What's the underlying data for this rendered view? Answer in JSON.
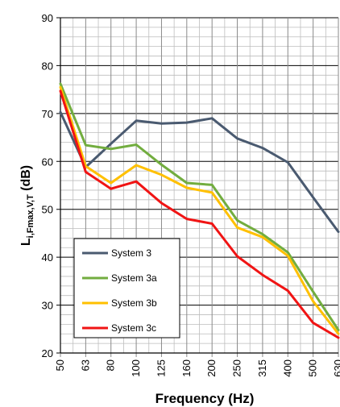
{
  "chart_data": {
    "type": "line",
    "xlabel": "Frequency (Hz)",
    "ylabel_main": "L",
    "ylabel_sub": "i,Fmax,V,T",
    "ylabel_unit": " (dB)",
    "categories": [
      "50",
      "63",
      "80",
      "100",
      "125",
      "160",
      "200",
      "250",
      "315",
      "400",
      "500",
      "630"
    ],
    "ylim": [
      20,
      90
    ],
    "yticks": [
      20,
      30,
      40,
      50,
      60,
      70,
      80,
      90
    ],
    "grid": true,
    "legend_position": "bottom-left",
    "series": [
      {
        "name": "System 3",
        "color": "#4a5a70",
        "values": [
          70.3,
          58.8,
          63.7,
          68.5,
          67.9,
          68.1,
          69.0,
          64.8,
          62.8,
          59.8,
          52.5,
          45.3
        ]
      },
      {
        "name": "System 3a",
        "color": "#72ad3f",
        "values": [
          76.2,
          63.4,
          62.6,
          63.5,
          59.3,
          55.5,
          55.1,
          47.7,
          44.8,
          41.0,
          32.8,
          24.8
        ]
      },
      {
        "name": "System 3b",
        "color": "#ffc000",
        "values": [
          75.5,
          59.0,
          55.5,
          59.2,
          57.2,
          54.5,
          53.5,
          46.2,
          44.2,
          40.3,
          30.8,
          24.0
        ]
      },
      {
        "name": "System 3c",
        "color": "#f01414",
        "values": [
          74.7,
          57.8,
          54.3,
          55.8,
          51.3,
          48.0,
          47.0,
          40.2,
          36.3,
          33.0,
          26.3,
          23.2
        ]
      }
    ]
  }
}
